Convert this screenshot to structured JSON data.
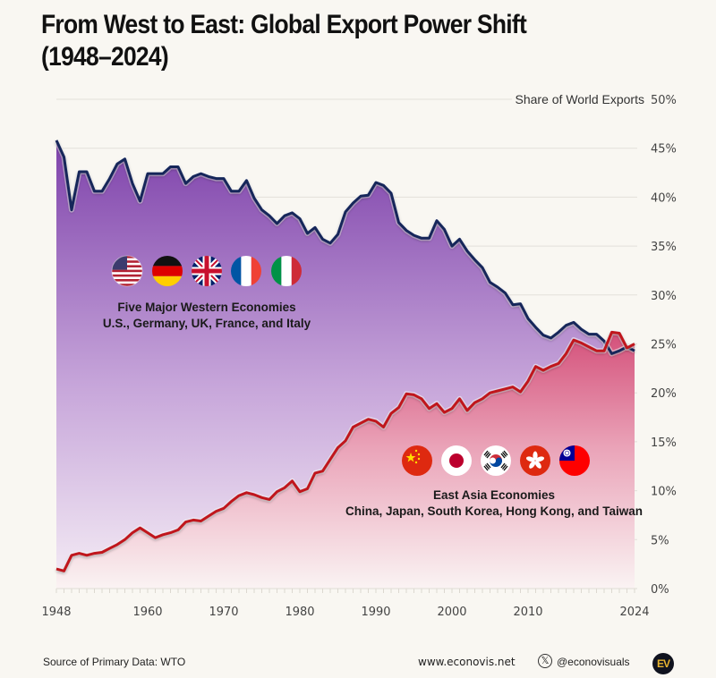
{
  "title_line1": "From West to East: Global Export Power Shift",
  "title_line2": "(1948–2024)",
  "footer": {
    "source": "Source of Primary Data: WTO",
    "website": "www.econovis.net",
    "handle": "@econovisuals",
    "logo": "EV"
  },
  "icons": {
    "social": "x-twitter-icon",
    "logo": "econovis-logo"
  },
  "colors": {
    "west_line": "#14275a",
    "east_line": "#c0151f",
    "west_fill_top": "#8a4fb3",
    "west_fill_bottom": "#f3e9f4",
    "east_fill_top": "#d9577f",
    "east_fill_bottom": "#f9f1f2",
    "background": "#f9f7f2"
  },
  "groups": {
    "west": {
      "title": "Five Major Western Economies",
      "subtitle": "U.S., Germany, UK, France, and Italy",
      "flags": [
        "us-flag-icon",
        "germany-flag-icon",
        "uk-flag-icon",
        "france-flag-icon",
        "italy-flag-icon"
      ]
    },
    "east": {
      "title": "East Asia Economies",
      "subtitle": "China, Japan, South Korea, Hong Kong, and Taiwan",
      "flags": [
        "china-flag-icon",
        "japan-flag-icon",
        "south-korea-flag-icon",
        "hong-kong-flag-icon",
        "taiwan-flag-icon"
      ]
    }
  },
  "chart_data": {
    "type": "area",
    "title": "From West to East: Global Export Power Shift (1948–2024)",
    "ylabel": "Share of World Exports",
    "xlabel": "",
    "xlim": [
      1948,
      2024
    ],
    "ylim": [
      0,
      50
    ],
    "x_ticks": [
      "1948",
      "1960",
      "1970",
      "1980",
      "1990",
      "2000",
      "2010",
      "2024"
    ],
    "y_ticks": [
      "0%",
      "5%",
      "10%",
      "15%",
      "20%",
      "25%",
      "30%",
      "35%",
      "40%",
      "45%",
      "50%"
    ],
    "grid": true,
    "x_start": 1948,
    "series": [
      {
        "name": "Five Major Western Economies",
        "values": [
          45.8,
          44.1,
          38.7,
          42.6,
          42.6,
          40.6,
          40.6,
          41.9,
          43.4,
          43.9,
          41.4,
          39.6,
          42.4,
          42.4,
          42.4,
          43.1,
          43.1,
          41.4,
          42.1,
          42.4,
          42.1,
          41.9,
          41.9,
          40.6,
          40.6,
          41.7,
          39.9,
          38.7,
          38.1,
          37.3,
          38.1,
          38.4,
          37.8,
          36.3,
          36.9,
          35.7,
          35.3,
          36.2,
          38.5,
          39.4,
          40.1,
          40.2,
          41.5,
          41.2,
          40.4,
          37.4,
          36.6,
          36.1,
          35.8,
          35.8,
          37.6,
          36.7,
          35.0,
          35.7,
          34.5,
          33.6,
          32.8,
          31.3,
          30.8,
          30.2,
          29.0,
          29.1,
          27.6,
          26.7,
          25.9,
          25.6,
          26.2,
          26.9,
          27.2,
          26.5,
          26.0,
          26.0,
          25.3,
          24.0,
          24.3,
          24.7,
          24.3
        ]
      },
      {
        "name": "East Asia Economies",
        "values": [
          2.0,
          1.8,
          3.4,
          3.6,
          3.4,
          3.6,
          3.7,
          4.1,
          4.5,
          5.0,
          5.7,
          6.2,
          5.7,
          5.2,
          5.5,
          5.7,
          6.0,
          6.8,
          7.0,
          6.9,
          7.4,
          7.9,
          8.2,
          8.9,
          9.5,
          9.8,
          9.6,
          9.3,
          9.1,
          9.9,
          10.3,
          11.0,
          9.9,
          10.2,
          11.8,
          12.0,
          13.2,
          14.4,
          15.1,
          16.5,
          16.9,
          17.3,
          17.1,
          16.5,
          17.9,
          18.5,
          19.9,
          19.8,
          19.4,
          18.4,
          18.9,
          18.0,
          18.4,
          19.4,
          18.2,
          19.0,
          19.4,
          20.0,
          20.2,
          20.4,
          20.6,
          20.1,
          21.2,
          22.7,
          22.3,
          22.7,
          23.0,
          24.0,
          25.4,
          25.1,
          24.7,
          24.3,
          24.3,
          26.2,
          26.1,
          24.6,
          25.0
        ]
      }
    ]
  }
}
